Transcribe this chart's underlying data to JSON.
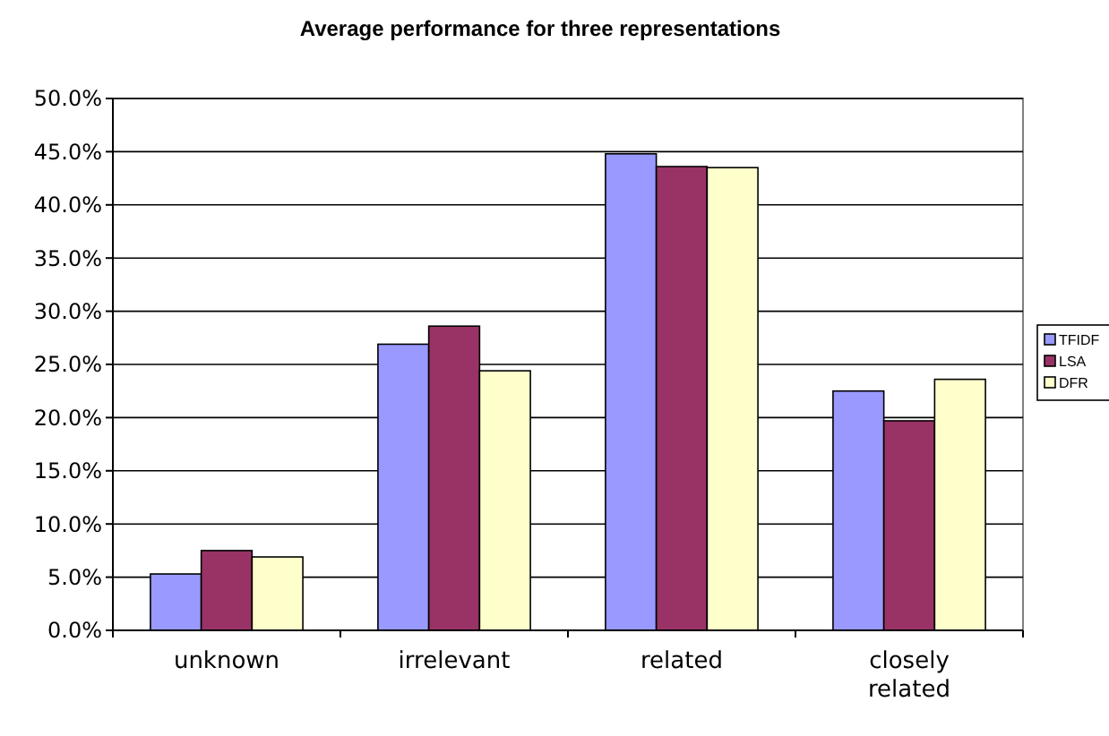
{
  "chart_data": {
    "type": "bar",
    "title": "Average performance for three representations",
    "categories": [
      "unknown",
      "irrelevant",
      "related",
      "closely related"
    ],
    "series": [
      {
        "name": "TFIDF",
        "color": "#9999ff",
        "values": [
          5.3,
          26.9,
          44.8,
          22.5
        ]
      },
      {
        "name": "LSA",
        "color": "#993366",
        "values": [
          7.5,
          28.6,
          43.6,
          19.7
        ]
      },
      {
        "name": "DFR",
        "color": "#ffffcc",
        "values": [
          6.9,
          24.4,
          43.5,
          23.6
        ]
      }
    ],
    "ylim": [
      0,
      50
    ],
    "yticks": [
      {
        "value": 0,
        "label": "0.0%"
      },
      {
        "value": 5,
        "label": "5.0%"
      },
      {
        "value": 10,
        "label": "10.0%"
      },
      {
        "value": 15,
        "label": "15.0%"
      },
      {
        "value": 20,
        "label": "20.0%"
      },
      {
        "value": 25,
        "label": "25.0%"
      },
      {
        "value": 30,
        "label": "30.0%"
      },
      {
        "value": 35,
        "label": "35.0%"
      },
      {
        "value": 40,
        "label": "40.0%"
      },
      {
        "value": 45,
        "label": "45.0%"
      },
      {
        "value": 50,
        "label": "50.0%"
      }
    ],
    "grid": "y",
    "legend": "right"
  }
}
